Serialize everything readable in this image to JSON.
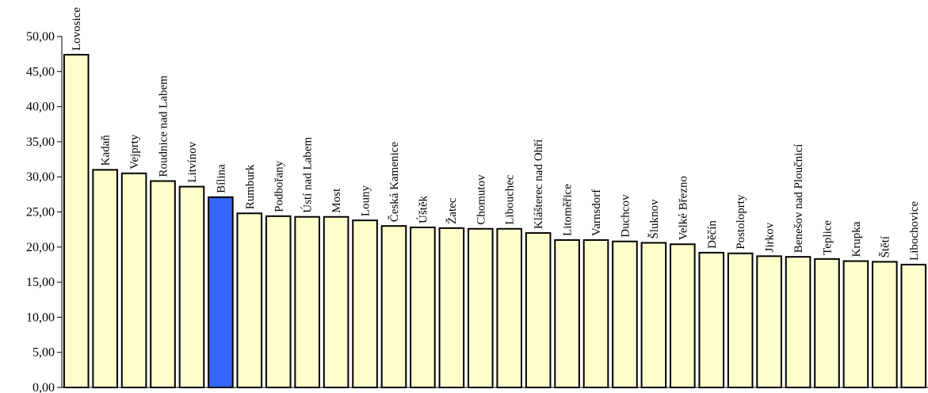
{
  "chart_data": {
    "type": "bar",
    "title": "",
    "xlabel": "",
    "ylabel": "",
    "ylim": [
      0,
      50
    ],
    "y_ticks": [
      "0,00",
      "5,00",
      "10,00",
      "15,00",
      "20,00",
      "25,00",
      "30,00",
      "35,00",
      "40,00",
      "45,00",
      "50,00"
    ],
    "grid": false,
    "legend": "none",
    "bar_color": "#FFFFCC",
    "highlight_color": "#3366FF",
    "highlight_category": "Bílina",
    "categories": [
      "Lovosice",
      "Kadaň",
      "Vejprty",
      "Roudnice nad Labem",
      "Litvínov",
      "Bílina",
      "Rumburk",
      "Podbořany",
      "Ústí nad Labem",
      "Most",
      "Louny",
      "Česká Kamenice",
      "Úštěk",
      "Žatec",
      "Chomutov",
      "Libouchec",
      "Klášterec nad Ohří",
      "Litoměřice",
      "Varnsdorf",
      "Duchcov",
      "Šluknov",
      "Velké Březno",
      "Děčín",
      "Postoloprty",
      "Jirkov",
      "Benešov nad Ploučnicí",
      "Teplice",
      "Krupka",
      "Štětí",
      "Libochovice"
    ],
    "values": [
      47.4,
      31.0,
      30.5,
      29.4,
      28.6,
      27.1,
      24.8,
      24.4,
      24.3,
      24.3,
      23.8,
      23.0,
      22.8,
      22.7,
      22.6,
      22.6,
      22.0,
      21.0,
      21.0,
      20.8,
      20.6,
      20.4,
      19.2,
      19.1,
      18.7,
      18.6,
      18.3,
      18.0,
      17.9,
      17.5
    ]
  }
}
